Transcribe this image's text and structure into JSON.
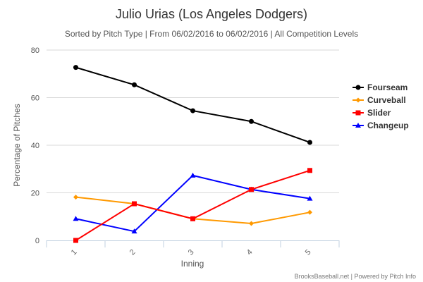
{
  "chart_data": {
    "type": "line",
    "title": "Julio Urias (Los Angeles Dodgers)",
    "subtitle": "Sorted by Pitch Type | From 06/02/2016 to 06/02/2016 | All Competition Levels",
    "xlabel": "Inning",
    "ylabel": "Percentage of Pitches",
    "categories": [
      "1",
      "2",
      "3",
      "4",
      "5"
    ],
    "ylim": [
      0,
      80
    ],
    "yticks": [
      0,
      20,
      40,
      60,
      80
    ],
    "grid": true,
    "legend_position": "right",
    "series": [
      {
        "name": "Fourseam",
        "color": "#000000",
        "marker": "circle",
        "values": [
          72.7,
          65.4,
          54.5,
          50.0,
          41.2
        ]
      },
      {
        "name": "Curveball",
        "color": "#FF9900",
        "marker": "diamond",
        "values": [
          18.2,
          15.4,
          9.1,
          7.1,
          11.8
        ]
      },
      {
        "name": "Slider",
        "color": "#FF0000",
        "marker": "square",
        "values": [
          0.0,
          15.4,
          9.1,
          21.4,
          29.4
        ]
      },
      {
        "name": "Changeup",
        "color": "#0000FF",
        "marker": "triangle",
        "values": [
          9.1,
          3.8,
          27.3,
          21.4,
          17.6
        ]
      }
    ],
    "credits": "BrooksBaseball.net | Powered by Pitch Info"
  }
}
